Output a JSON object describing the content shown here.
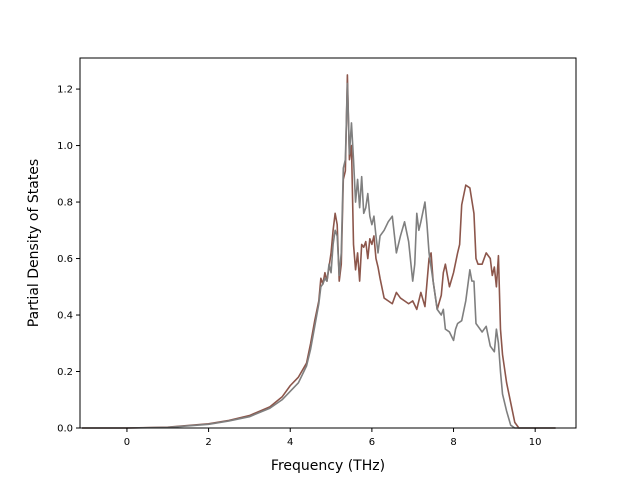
{
  "chart_data": {
    "type": "line",
    "xlabel": "Frequency (THz)",
    "ylabel": "Partial Density of States",
    "xlim": [
      -1.15,
      11.0
    ],
    "ylim": [
      0.0,
      1.31
    ],
    "xticks": [
      0,
      2,
      4,
      6,
      8,
      10
    ],
    "yticks": [
      0.0,
      0.2,
      0.4,
      0.6,
      0.8,
      1.0,
      1.2
    ],
    "xtick_labels": [
      "0",
      "2",
      "4",
      "6",
      "8",
      "10"
    ],
    "ytick_labels": [
      "0.0",
      "0.2",
      "0.4",
      "0.6",
      "0.8",
      "1.0",
      "1.2"
    ],
    "grid": false,
    "legend": "none",
    "series": [
      {
        "color": "#8c564b",
        "points": [
          [
            -1.1,
            0.0
          ],
          [
            0.0,
            0.0
          ],
          [
            1.0,
            0.003
          ],
          [
            2.0,
            0.015
          ],
          [
            2.5,
            0.027
          ],
          [
            3.0,
            0.044
          ],
          [
            3.5,
            0.075
          ],
          [
            3.8,
            0.11
          ],
          [
            4.0,
            0.15
          ],
          [
            4.2,
            0.18
          ],
          [
            4.4,
            0.23
          ],
          [
            4.5,
            0.3
          ],
          [
            4.6,
            0.38
          ],
          [
            4.7,
            0.45
          ],
          [
            4.75,
            0.53
          ],
          [
            4.8,
            0.51
          ],
          [
            4.85,
            0.55
          ],
          [
            4.9,
            0.52
          ],
          [
            5.0,
            0.62
          ],
          [
            5.05,
            0.7
          ],
          [
            5.1,
            0.76
          ],
          [
            5.15,
            0.72
          ],
          [
            5.2,
            0.52
          ],
          [
            5.25,
            0.58
          ],
          [
            5.3,
            0.88
          ],
          [
            5.35,
            0.91
          ],
          [
            5.4,
            1.25
          ],
          [
            5.45,
            0.95
          ],
          [
            5.5,
            1.0
          ],
          [
            5.55,
            0.65
          ],
          [
            5.6,
            0.56
          ],
          [
            5.65,
            0.62
          ],
          [
            5.7,
            0.52
          ],
          [
            5.75,
            0.65
          ],
          [
            5.8,
            0.64
          ],
          [
            5.85,
            0.66
          ],
          [
            5.9,
            0.6
          ],
          [
            5.95,
            0.67
          ],
          [
            6.0,
            0.65
          ],
          [
            6.05,
            0.68
          ],
          [
            6.1,
            0.6
          ],
          [
            6.15,
            0.57
          ],
          [
            6.2,
            0.53
          ],
          [
            6.3,
            0.46
          ],
          [
            6.4,
            0.45
          ],
          [
            6.5,
            0.44
          ],
          [
            6.6,
            0.48
          ],
          [
            6.7,
            0.46
          ],
          [
            6.8,
            0.45
          ],
          [
            6.9,
            0.44
          ],
          [
            7.0,
            0.45
          ],
          [
            7.1,
            0.42
          ],
          [
            7.2,
            0.48
          ],
          [
            7.3,
            0.43
          ],
          [
            7.4,
            0.6
          ],
          [
            7.45,
            0.62
          ],
          [
            7.5,
            0.52
          ],
          [
            7.6,
            0.42
          ],
          [
            7.7,
            0.47
          ],
          [
            7.75,
            0.55
          ],
          [
            7.8,
            0.58
          ],
          [
            7.9,
            0.5
          ],
          [
            8.0,
            0.55
          ],
          [
            8.1,
            0.62
          ],
          [
            8.15,
            0.65
          ],
          [
            8.2,
            0.79
          ],
          [
            8.3,
            0.86
          ],
          [
            8.4,
            0.85
          ],
          [
            8.5,
            0.76
          ],
          [
            8.55,
            0.6
          ],
          [
            8.6,
            0.58
          ],
          [
            8.7,
            0.58
          ],
          [
            8.8,
            0.62
          ],
          [
            8.9,
            0.6
          ],
          [
            8.95,
            0.54
          ],
          [
            9.0,
            0.57
          ],
          [
            9.05,
            0.5
          ],
          [
            9.1,
            0.61
          ],
          [
            9.15,
            0.35
          ],
          [
            9.2,
            0.26
          ],
          [
            9.3,
            0.16
          ],
          [
            9.4,
            0.09
          ],
          [
            9.5,
            0.02
          ],
          [
            9.6,
            0.0
          ],
          [
            10.5,
            0.0
          ]
        ]
      },
      {
        "color": "#7f7f7f",
        "points": [
          [
            -1.1,
            0.0
          ],
          [
            0.0,
            0.0
          ],
          [
            1.0,
            0.002
          ],
          [
            2.0,
            0.013
          ],
          [
            2.5,
            0.025
          ],
          [
            3.0,
            0.04
          ],
          [
            3.5,
            0.07
          ],
          [
            3.8,
            0.1
          ],
          [
            4.0,
            0.13
          ],
          [
            4.2,
            0.16
          ],
          [
            4.4,
            0.22
          ],
          [
            4.5,
            0.28
          ],
          [
            4.6,
            0.36
          ],
          [
            4.7,
            0.44
          ],
          [
            4.75,
            0.5
          ],
          [
            4.8,
            0.51
          ],
          [
            4.85,
            0.53
          ],
          [
            4.9,
            0.52
          ],
          [
            4.95,
            0.58
          ],
          [
            5.0,
            0.55
          ],
          [
            5.05,
            0.65
          ],
          [
            5.1,
            0.7
          ],
          [
            5.15,
            0.68
          ],
          [
            5.2,
            0.54
          ],
          [
            5.25,
            0.62
          ],
          [
            5.3,
            0.92
          ],
          [
            5.35,
            0.95
          ],
          [
            5.4,
            1.22
          ],
          [
            5.45,
            0.97
          ],
          [
            5.5,
            1.08
          ],
          [
            5.55,
            0.95
          ],
          [
            5.6,
            0.8
          ],
          [
            5.65,
            0.88
          ],
          [
            5.7,
            0.78
          ],
          [
            5.75,
            0.89
          ],
          [
            5.8,
            0.76
          ],
          [
            5.85,
            0.78
          ],
          [
            5.9,
            0.83
          ],
          [
            5.95,
            0.75
          ],
          [
            6.0,
            0.72
          ],
          [
            6.05,
            0.75
          ],
          [
            6.1,
            0.68
          ],
          [
            6.15,
            0.62
          ],
          [
            6.2,
            0.68
          ],
          [
            6.3,
            0.7
          ],
          [
            6.4,
            0.73
          ],
          [
            6.5,
            0.75
          ],
          [
            6.6,
            0.62
          ],
          [
            6.7,
            0.68
          ],
          [
            6.8,
            0.73
          ],
          [
            6.9,
            0.66
          ],
          [
            7.0,
            0.52
          ],
          [
            7.05,
            0.58
          ],
          [
            7.1,
            0.76
          ],
          [
            7.15,
            0.7
          ],
          [
            7.2,
            0.73
          ],
          [
            7.3,
            0.8
          ],
          [
            7.35,
            0.72
          ],
          [
            7.4,
            0.62
          ],
          [
            7.5,
            0.52
          ],
          [
            7.6,
            0.42
          ],
          [
            7.7,
            0.4
          ],
          [
            7.75,
            0.42
          ],
          [
            7.8,
            0.35
          ],
          [
            7.9,
            0.34
          ],
          [
            8.0,
            0.31
          ],
          [
            8.05,
            0.35
          ],
          [
            8.1,
            0.37
          ],
          [
            8.2,
            0.38
          ],
          [
            8.3,
            0.45
          ],
          [
            8.4,
            0.56
          ],
          [
            8.45,
            0.52
          ],
          [
            8.5,
            0.52
          ],
          [
            8.55,
            0.37
          ],
          [
            8.6,
            0.36
          ],
          [
            8.7,
            0.34
          ],
          [
            8.8,
            0.36
          ],
          [
            8.9,
            0.29
          ],
          [
            9.0,
            0.27
          ],
          [
            9.05,
            0.35
          ],
          [
            9.1,
            0.3
          ],
          [
            9.15,
            0.2
          ],
          [
            9.2,
            0.12
          ],
          [
            9.3,
            0.06
          ],
          [
            9.4,
            0.01
          ],
          [
            9.5,
            0.0
          ],
          [
            10.5,
            0.0
          ]
        ]
      }
    ]
  }
}
